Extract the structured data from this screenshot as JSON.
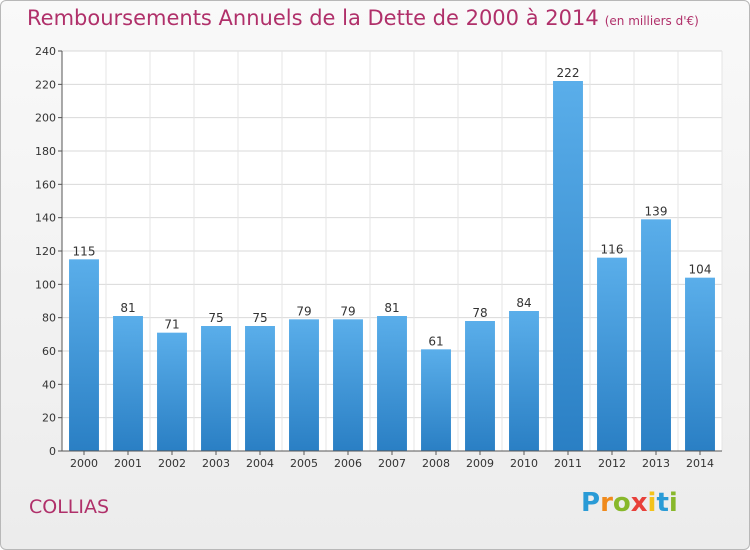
{
  "title": "Remboursements Annuels de la Dette de 2000 à 2014",
  "title_unit": "(en milliers d'€)",
  "city": "COLLIAS",
  "logo": {
    "letters": [
      "P",
      "r",
      "o",
      "x",
      "i",
      "t",
      "i"
    ],
    "colors": [
      "#2a9bd6",
      "#f08a1c",
      "#88b82b",
      "#e8403a",
      "#f3c21b",
      "#2a9bd6",
      "#88b82b"
    ]
  },
  "chart_data": {
    "type": "bar",
    "title": "Remboursements Annuels de la Dette de 2000 à 2014",
    "xlabel": "",
    "ylabel": "",
    "categories": [
      "2000",
      "2001",
      "2002",
      "2003",
      "2004",
      "2005",
      "2006",
      "2007",
      "2008",
      "2009",
      "2010",
      "2011",
      "2012",
      "2013",
      "2014"
    ],
    "values": [
      115,
      81,
      71,
      75,
      75,
      79,
      79,
      81,
      61,
      78,
      84,
      222,
      116,
      139,
      104
    ],
    "ylim": [
      0,
      240
    ],
    "yticks": [
      0,
      20,
      40,
      60,
      80,
      100,
      120,
      140,
      160,
      180,
      200,
      220,
      240
    ],
    "grid": true,
    "bar_color": "#3b9be0"
  }
}
